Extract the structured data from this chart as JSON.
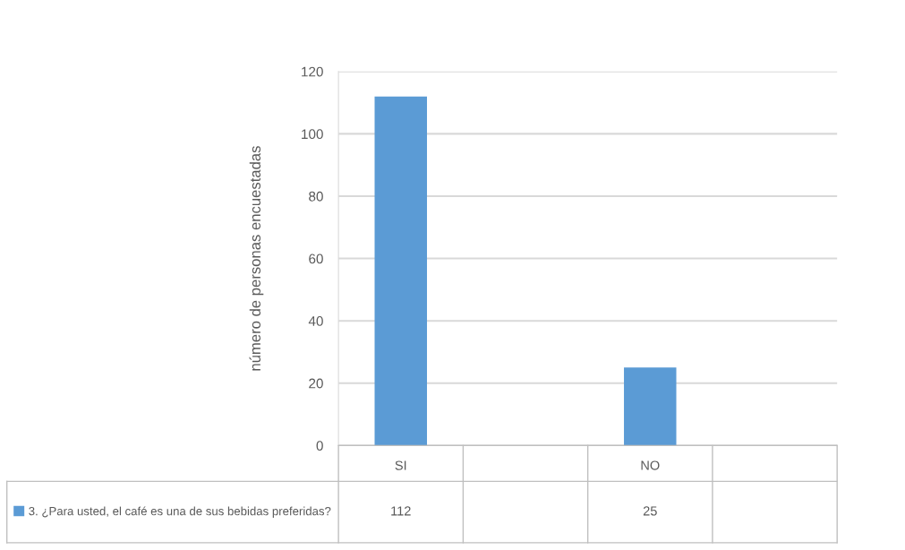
{
  "chart_data": {
    "type": "bar",
    "ylabel": "número de personas encuestadas",
    "categories": [
      "SI",
      null,
      "NO",
      null
    ],
    "series": [
      {
        "name": "3. ¿Para usted, el café es una de sus bebidas preferidas?",
        "color": "#5b9bd5",
        "values": [
          112,
          null,
          25,
          null
        ]
      }
    ],
    "ylim": [
      0,
      120
    ],
    "yticks": [
      0,
      20,
      40,
      60,
      80,
      100,
      120
    ],
    "grid": "y",
    "legend": "bottom left",
    "data_labels": true
  }
}
